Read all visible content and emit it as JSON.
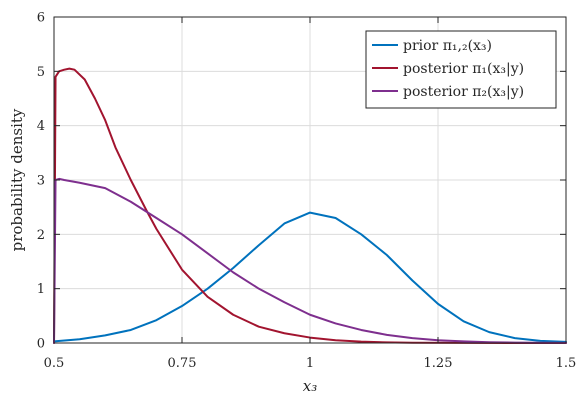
{
  "chart_data": {
    "type": "line",
    "title": "",
    "xlabel": "x₃",
    "ylabel": "probability density",
    "xlim": [
      0.5,
      1.5
    ],
    "ylim": [
      0,
      6
    ],
    "grid": true,
    "legend_position": "top-right",
    "x_ticks": [
      0.5,
      0.75,
      1,
      1.25,
      1.5
    ],
    "x_tick_labels": [
      "0.5",
      "0.75",
      "1",
      "1.25",
      "1.5"
    ],
    "y_ticks": [
      0,
      1,
      2,
      3,
      4,
      5,
      6
    ],
    "y_tick_labels": [
      "0",
      "1",
      "2",
      "3",
      "4",
      "5",
      "6"
    ],
    "series": [
      {
        "name": "prior π₁,₂(x₃)",
        "color": "#0072bd",
        "x": [
          0.5,
          0.55,
          0.6,
          0.65,
          0.7,
          0.75,
          0.8,
          0.85,
          0.9,
          0.95,
          1.0,
          1.05,
          1.1,
          1.15,
          1.2,
          1.25,
          1.3,
          1.35,
          1.4,
          1.45,
          1.5
        ],
        "y": [
          0.03,
          0.07,
          0.14,
          0.24,
          0.42,
          0.68,
          1.0,
          1.38,
          1.8,
          2.2,
          2.4,
          2.3,
          2.0,
          1.62,
          1.15,
          0.72,
          0.4,
          0.2,
          0.09,
          0.04,
          0.02
        ]
      },
      {
        "name": "posterior π₁(x₃|y)",
        "color": "#a2142f",
        "x": [
          0.5,
          0.503,
          0.51,
          0.52,
          0.53,
          0.54,
          0.56,
          0.58,
          0.6,
          0.62,
          0.65,
          0.68,
          0.7,
          0.75,
          0.8,
          0.85,
          0.9,
          0.95,
          1.0,
          1.05,
          1.1,
          1.15,
          1.2,
          1.3,
          1.4,
          1.5
        ],
        "y": [
          0,
          4.9,
          5.0,
          5.03,
          5.05,
          5.03,
          4.85,
          4.5,
          4.1,
          3.6,
          3.0,
          2.45,
          2.1,
          1.35,
          0.85,
          0.52,
          0.3,
          0.18,
          0.1,
          0.05,
          0.025,
          0.012,
          0.005,
          0.002,
          0,
          0
        ]
      },
      {
        "name": "posterior π₂(x₃|y)",
        "color": "#7e2f8e",
        "x": [
          0.5,
          0.503,
          0.51,
          0.52,
          0.55,
          0.6,
          0.65,
          0.7,
          0.75,
          0.8,
          0.85,
          0.9,
          0.95,
          1.0,
          1.05,
          1.1,
          1.15,
          1.2,
          1.25,
          1.3,
          1.35,
          1.4,
          1.45,
          1.5
        ],
        "y": [
          0,
          3.0,
          3.02,
          3.0,
          2.95,
          2.85,
          2.6,
          2.3,
          2.0,
          1.65,
          1.3,
          1.0,
          0.75,
          0.52,
          0.36,
          0.24,
          0.15,
          0.09,
          0.05,
          0.03,
          0.015,
          0.008,
          0.004,
          0.002
        ]
      }
    ]
  }
}
